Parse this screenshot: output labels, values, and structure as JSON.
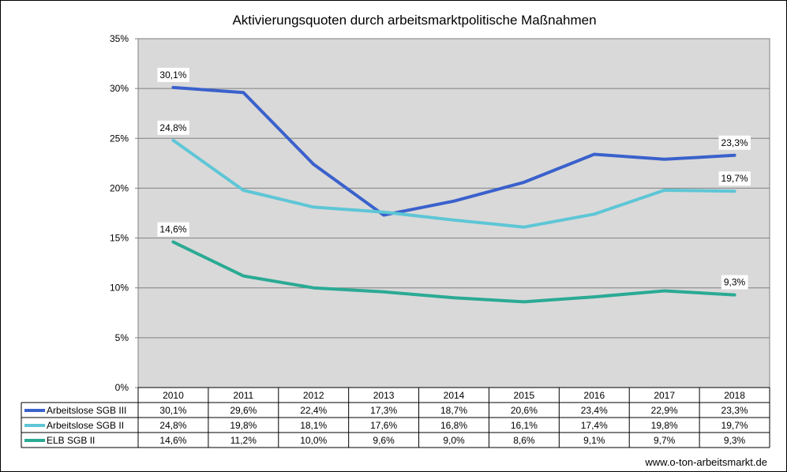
{
  "chart_data": {
    "type": "line",
    "title": "Aktivierungsquoten durch arbeitsmarktpolitische Maßnahmen",
    "xlabel": "",
    "ylabel": "",
    "categories": [
      "2010",
      "2011",
      "2012",
      "2013",
      "2014",
      "2015",
      "2016",
      "2017",
      "2018"
    ],
    "ylim": [
      0,
      35
    ],
    "yticks": [
      0,
      5,
      10,
      15,
      20,
      25,
      30,
      35
    ],
    "ytick_labels": [
      "0%",
      "5%",
      "10%",
      "15%",
      "20%",
      "25%",
      "30%",
      "35%"
    ],
    "grid": true,
    "legend": "data-table",
    "series": [
      {
        "name": "Arbeitslose SGB III",
        "color": "#3A61CC",
        "values": [
          30.1,
          29.6,
          22.4,
          17.3,
          18.7,
          20.6,
          23.4,
          22.9,
          23.3
        ],
        "value_labels": [
          "30,1%",
          "29,6%",
          "22,4%",
          "17,3%",
          "18,7%",
          "20,6%",
          "23,4%",
          "22,9%",
          "23,3%"
        ]
      },
      {
        "name": "Arbeitslose SGB II",
        "color": "#5EC6D6",
        "values": [
          24.8,
          19.8,
          18.1,
          17.6,
          16.8,
          16.1,
          17.4,
          19.8,
          19.7
        ],
        "value_labels": [
          "24,8%",
          "19,8%",
          "18,1%",
          "17,6%",
          "16,8%",
          "16,1%",
          "17,4%",
          "19,8%",
          "19,7%"
        ]
      },
      {
        "name": "ELB SGB II",
        "color": "#2AAA94",
        "values": [
          14.6,
          11.2,
          10.0,
          9.6,
          9.0,
          8.6,
          9.1,
          9.7,
          9.3
        ],
        "value_labels": [
          "14,6%",
          "11,2%",
          "10,0%",
          "9,6%",
          "9,0%",
          "8,6%",
          "9,1%",
          "9,7%",
          "9,3%"
        ]
      }
    ],
    "annotations": [
      {
        "series": 0,
        "index": 0,
        "text": "30,1%"
      },
      {
        "series": 0,
        "index": 8,
        "text": "23,3%"
      },
      {
        "series": 1,
        "index": 0,
        "text": "24,8%"
      },
      {
        "series": 1,
        "index": 8,
        "text": "19,7%"
      },
      {
        "series": 2,
        "index": 0,
        "text": "14,6%"
      },
      {
        "series": 2,
        "index": 8,
        "text": "9,3%"
      }
    ],
    "source": "www.o-ton-arbeitsmarkt.de"
  }
}
